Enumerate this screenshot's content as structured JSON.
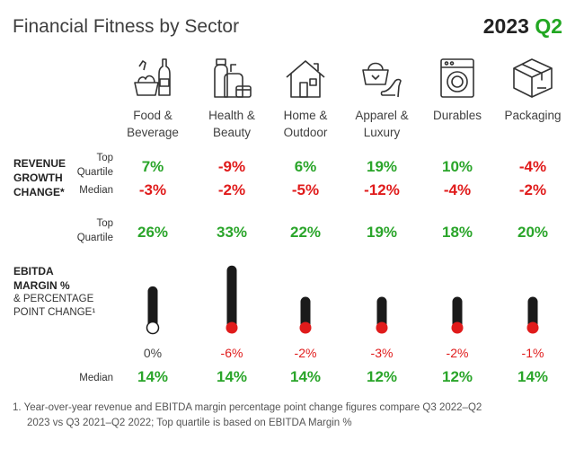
{
  "header": {
    "title": "Financial Fitness by Sector",
    "period_year": "2023",
    "period_quarter": "Q2"
  },
  "colors": {
    "positive": "#2aa52a",
    "negative": "#e01b1b",
    "bar": "#1a1a1a",
    "neutral": "#444444"
  },
  "sectors": [
    {
      "label_line1": "Food &",
      "label_line2": "Beverage",
      "icon": "food-beverage-icon"
    },
    {
      "label_line1": "Health &",
      "label_line2": "Beauty",
      "icon": "health-beauty-icon"
    },
    {
      "label_line1": "Home &",
      "label_line2": "Outdoor",
      "icon": "home-outdoor-icon"
    },
    {
      "label_line1": "Apparel &",
      "label_line2": "Luxury",
      "icon": "apparel-luxury-icon"
    },
    {
      "label_line1": "Durables",
      "label_line2": "",
      "icon": "durables-icon"
    },
    {
      "label_line1": "Packaging",
      "label_line2": "",
      "icon": "packaging-icon"
    }
  ],
  "revenue": {
    "title_line1": "REVENUE",
    "title_line2": "GROWTH",
    "title_line3": "CHANGE*",
    "top_label_line1": "Top",
    "top_label_line2": "Quartile",
    "median_label": "Median",
    "top_quartile": [
      "7%",
      "-9%",
      "6%",
      "19%",
      "10%",
      "-4%"
    ],
    "median": [
      "-3%",
      "-2%",
      "-5%",
      "-12%",
      "-4%",
      "-2%"
    ]
  },
  "ebitda": {
    "title_line1": "EBITDA",
    "title_line2": "MARGIN %",
    "sub_line1": "& PERCENTAGE",
    "sub_line2": "POINT CHANGE¹",
    "top_label_line1": "Top",
    "top_label_line2": "Quartile",
    "median_label": "Median",
    "top_quartile": [
      "26%",
      "33%",
      "22%",
      "19%",
      "18%",
      "20%"
    ],
    "change": [
      "0%",
      "-6%",
      "-2%",
      "-3%",
      "-2%",
      "-1%"
    ],
    "median": [
      "14%",
      "14%",
      "14%",
      "12%",
      "12%",
      "14%"
    ]
  },
  "chart_data": {
    "type": "table",
    "title": "Financial Fitness by Sector",
    "period": "2023 Q2",
    "categories": [
      "Food & Beverage",
      "Health & Beauty",
      "Home & Outdoor",
      "Apparel & Luxury",
      "Durables",
      "Packaging"
    ],
    "series": [
      {
        "name": "Revenue Growth Change Top Quartile",
        "values": [
          7,
          -9,
          6,
          19,
          10,
          -4
        ]
      },
      {
        "name": "Revenue Growth Change Median",
        "values": [
          -3,
          -2,
          -5,
          -12,
          -4,
          -2
        ]
      },
      {
        "name": "EBITDA Margin Top Quartile",
        "values": [
          26,
          33,
          22,
          19,
          18,
          20
        ]
      },
      {
        "name": "EBITDA Margin Percentage Point Change",
        "values": [
          0,
          -6,
          -2,
          -3,
          -2,
          -1
        ]
      },
      {
        "name": "EBITDA Margin Median",
        "values": [
          14,
          14,
          14,
          12,
          12,
          14
        ]
      }
    ]
  },
  "footnote": {
    "line1": "1. Year-over-year revenue and EBITDA margin percentage point change figures compare Q3 2022–Q2",
    "line2": "2023 vs Q3 2021–Q2 2022; Top quartile is based on EBITDA Margin %"
  }
}
